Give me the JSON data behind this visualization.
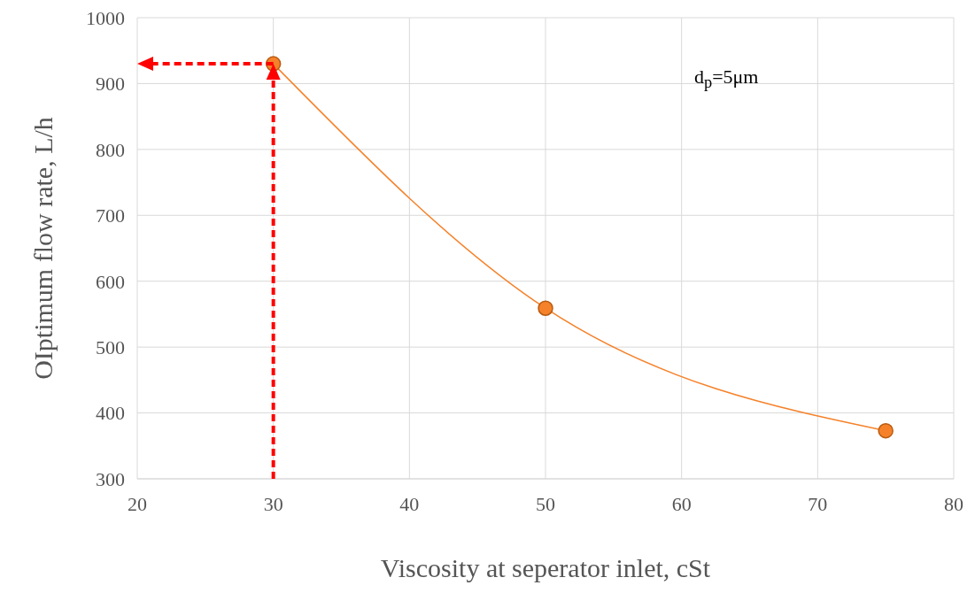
{
  "chart_data": {
    "type": "line",
    "xlabel": "Viscosity at seperator inlet, cSt",
    "ylabel": "OIptimum flow rate, L/h",
    "x": [
      30,
      50,
      75
    ],
    "series": [
      {
        "color": "#f5822a",
        "values": [
          930,
          559,
          373
        ]
      }
    ],
    "xlim": [
      20,
      80
    ],
    "xticks": [
      20,
      30,
      40,
      50,
      60,
      70,
      80
    ],
    "ylim": [
      300,
      1000
    ],
    "yticks": [
      300,
      400,
      500,
      600,
      700,
      800,
      900,
      1000
    ],
    "grid": true,
    "marker": "circle",
    "line_style": "solid",
    "annotations": [
      "d$_{p}$=5μm"
    ],
    "ref_lines": [
      {
        "axis": "x",
        "value": 30,
        "color": "#ff0000",
        "line_style": "dashed"
      },
      {
        "axis": "y",
        "value": 930,
        "color": "#ff0000",
        "line_style": "dashed"
      }
    ]
  }
}
